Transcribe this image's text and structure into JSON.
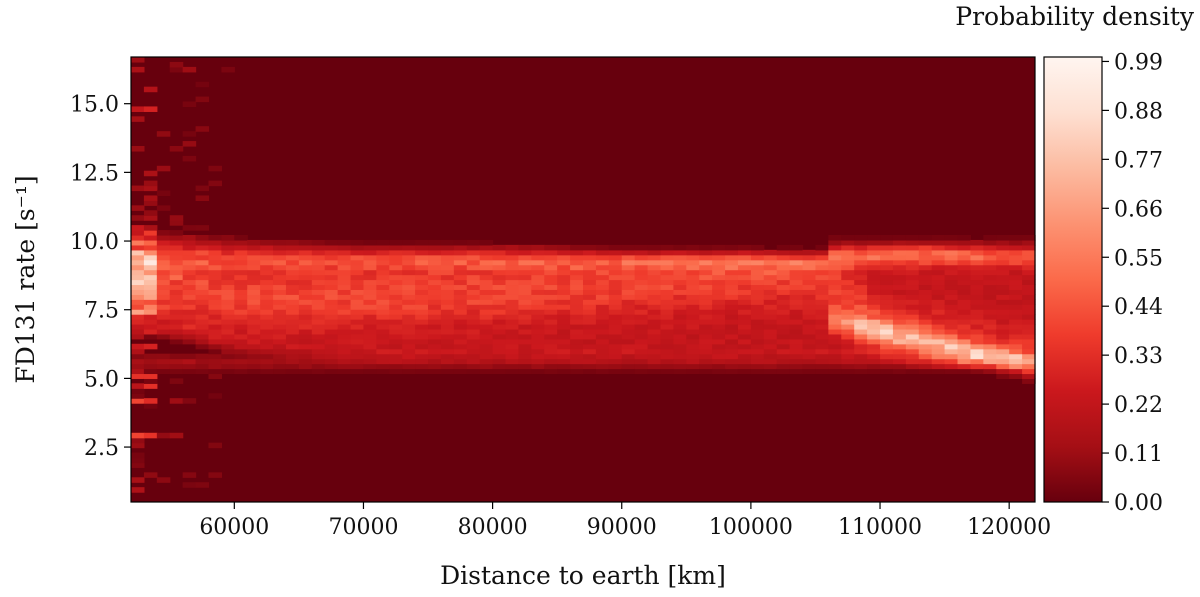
{
  "chart_data": {
    "type": "heatmap",
    "title": "",
    "xlabel": "Distance to earth [km]",
    "ylabel": "FD131 rate [s⁻¹]",
    "xlim": [
      52000,
      122000
    ],
    "ylim": [
      0.5,
      16.7
    ],
    "x_ticks": [
      60000,
      70000,
      80000,
      90000,
      100000,
      110000,
      120000
    ],
    "y_ticks": [
      2.5,
      5.0,
      7.5,
      10.0,
      12.5,
      15.0
    ],
    "x_tick_labels": [
      "60000",
      "70000",
      "80000",
      "90000",
      "100000",
      "110000",
      "120000"
    ],
    "y_tick_labels": [
      "2.5",
      "5.0",
      "7.5",
      "10.0",
      "12.5",
      "15.0"
    ],
    "colorbar": {
      "label": "Probability density",
      "range": [
        0.0,
        1.0
      ],
      "ticks": [
        0.0,
        0.11,
        0.22,
        0.33,
        0.44,
        0.55,
        0.66,
        0.77,
        0.88,
        0.99
      ],
      "tick_labels": [
        "0.00",
        "0.11",
        "0.22",
        "0.33",
        "0.44",
        "0.55",
        "0.66",
        "0.77",
        "0.88",
        "0.99"
      ],
      "colormap": "Reds"
    },
    "density_profile": [
      {
        "distance": 53000,
        "center_rate": 8.5,
        "low_rate": 6.5,
        "high_rate": 10.5,
        "peak_density": 0.95
      },
      {
        "distance": 60000,
        "center_rate": 8.0,
        "low_rate": 5.8,
        "high_rate": 10.2,
        "peak_density": 0.4
      },
      {
        "distance": 70000,
        "center_rate": 8.0,
        "low_rate": 5.5,
        "high_rate": 10.0,
        "peak_density": 0.33
      },
      {
        "distance": 80000,
        "center_rate": 8.2,
        "low_rate": 5.5,
        "high_rate": 10.0,
        "peak_density": 0.35
      },
      {
        "distance": 90000,
        "center_rate": 8.5,
        "low_rate": 5.5,
        "high_rate": 9.8,
        "peak_density": 0.38
      },
      {
        "distance": 100000,
        "center_rate": 8.8,
        "low_rate": 5.5,
        "high_rate": 9.8,
        "peak_density": 0.45
      },
      {
        "distance": 105000,
        "center_rate": 8.9,
        "low_rate": 5.5,
        "high_rate": 9.7,
        "peak_density": 0.55
      },
      {
        "distance": 110000,
        "center_rate": 6.8,
        "low_rate": 5.5,
        "high_rate": 10.0,
        "peak_density": 0.55
      },
      {
        "distance": 115000,
        "center_rate": 6.2,
        "low_rate": 5.3,
        "high_rate": 10.0,
        "peak_density": 0.5
      },
      {
        "distance": 120000,
        "center_rate": 5.5,
        "low_rate": 5.3,
        "high_rate": 9.8,
        "peak_density": 0.5
      }
    ],
    "grid": false,
    "legend": "colorbar-right",
    "colors": {
      "background": "#67000d",
      "peak": "#fff5f0"
    }
  }
}
